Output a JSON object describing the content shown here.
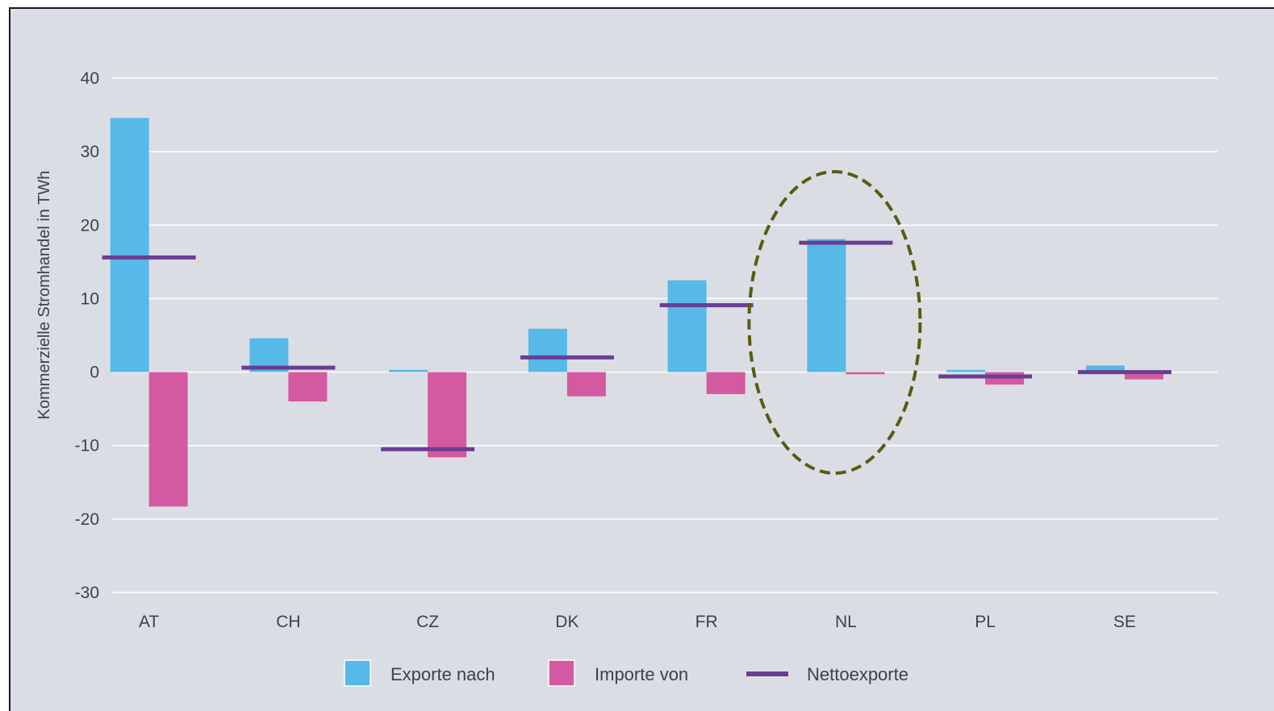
{
  "chart_data": {
    "type": "bar",
    "ylabel": "Kommerzielle Stromhandel in TWh",
    "xlabel": "",
    "ylim": [
      -30,
      40
    ],
    "yticks": [
      40,
      30,
      20,
      10,
      0,
      -10,
      -20,
      -30
    ],
    "categories": [
      "AT",
      "CH",
      "CZ",
      "DK",
      "FR",
      "NL",
      "PL",
      "SE"
    ],
    "series": [
      {
        "name": "Exporte nach",
        "kind": "bar",
        "color": "#56b9e8",
        "values": [
          34.6,
          4.6,
          0.3,
          5.9,
          12.5,
          18.1,
          0.3,
          0.9
        ]
      },
      {
        "name": "Importe von",
        "kind": "bar",
        "color": "#d35aa0",
        "values": [
          -18.3,
          -4.0,
          -11.6,
          -3.3,
          -3.0,
          -0.3,
          -1.7,
          -1.0
        ]
      },
      {
        "name": "Nettoexporte",
        "kind": "marker",
        "color": "#6a3d93",
        "values": [
          15.6,
          0.6,
          -10.5,
          2.0,
          9.1,
          17.6,
          -0.6,
          0.0
        ]
      }
    ],
    "grid": true,
    "legend": "bottom-center",
    "annotation": {
      "shape": "dashed-ellipse",
      "target": "NL",
      "color": "#5a5a12"
    }
  }
}
